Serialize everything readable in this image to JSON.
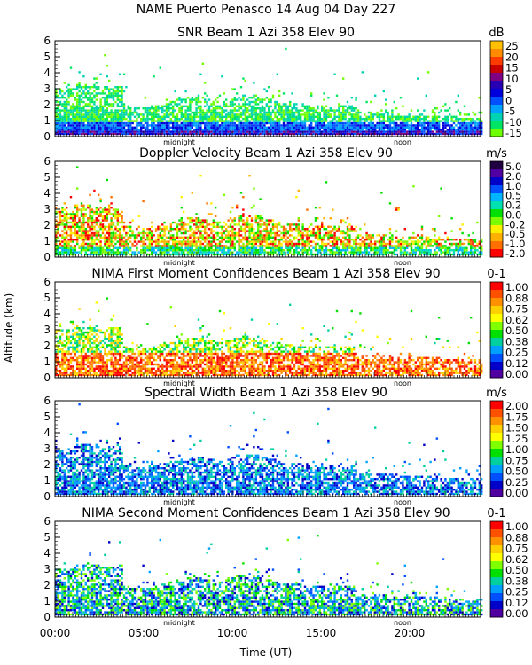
{
  "header": {
    "title": "NAME Puerto Penasco  14 Aug 04 Day 227"
  },
  "axes": {
    "ylabel": "Altitude (km)",
    "xlabel": "Time (UT)",
    "xticks": [
      "00:00",
      "05:00",
      "10:00",
      "15:00",
      "20:00"
    ],
    "yticks": [
      "0",
      "1",
      "2",
      "3",
      "4",
      "5",
      "6"
    ],
    "marker_midnight": "midnight",
    "marker_noon": "noon"
  },
  "palette": [
    "#7CFC00",
    "#00E000",
    "#00C8A0",
    "#00A0FF",
    "#0050FF",
    "#0000C8",
    "#4000A0",
    "#600080",
    "#FF0000",
    "#FF4000",
    "#FF8000",
    "#FFB000",
    "#FFE000"
  ],
  "chart_data": [
    {
      "type": "heatmap",
      "title": "SNR Beam 1 Azi 358 Elev 90",
      "unit": "dB",
      "scale_labels": [
        "25",
        "20",
        "15",
        "10",
        "5",
        "0",
        "-5",
        "-10",
        "-15"
      ],
      "scale_colors": [
        "#FFC000",
        "#FF8C00",
        "#FF3C00",
        "#C80000",
        "#7F0080",
        "#2800B4",
        "#0000DC",
        "#0050FF",
        "#00A0FF",
        "#00D2B4",
        "#00E664",
        "#6EFF00"
      ],
      "x_range_hours": [
        0,
        24
      ],
      "y_range_km": [
        0,
        6
      ],
      "profile": "snr"
    },
    {
      "type": "heatmap",
      "title": "Doppler Velocity Beam 1 Azi 358 Elev 90",
      "unit": "m/s",
      "scale_labels": [
        "5.0",
        "2.0",
        "1.0",
        "0.5",
        "0.2",
        "0.0",
        "-0.2",
        "-0.5",
        "-1.0",
        "-2.0"
      ],
      "scale_colors": [
        "#200040",
        "#5000A0",
        "#0000C8",
        "#0050FF",
        "#00B4FF",
        "#00E0B0",
        "#00E000",
        "#7CFC00",
        "#FFF000",
        "#FFB000",
        "#FF7000",
        "#FF0000"
      ],
      "x_range_hours": [
        0,
        24
      ],
      "y_range_km": [
        0,
        6
      ],
      "profile": "doppler"
    },
    {
      "type": "heatmap",
      "title": "NIMA First Moment Confidences Beam 1 Azi 358 Elev 90",
      "unit": "0-1",
      "scale_labels": [
        "1.00",
        "0.88",
        "0.75",
        "0.62",
        "0.50",
        "0.38",
        "0.25",
        "0.12",
        "0.00"
      ],
      "scale_colors": [
        "#FF0000",
        "#FF5000",
        "#FF9000",
        "#FFD000",
        "#FFFF00",
        "#80FF00",
        "#00E000",
        "#00D0A0",
        "#00A0FF",
        "#0050FF",
        "#0000C8",
        "#5000A0"
      ],
      "x_range_hours": [
        0,
        24
      ],
      "y_range_km": [
        0,
        6
      ],
      "profile": "conf1"
    },
    {
      "type": "heatmap",
      "title": "Spectral Width Beam 1 Azi 358 Elev 90",
      "unit": "m/s",
      "scale_labels": [
        "2.00",
        "1.75",
        "1.50",
        "1.25",
        "1.00",
        "0.75",
        "0.50",
        "0.25",
        "0.00"
      ],
      "scale_colors": [
        "#FF0000",
        "#FF5000",
        "#FF9000",
        "#FFD000",
        "#FFFF00",
        "#80FF00",
        "#00E000",
        "#00D0A0",
        "#00A0FF",
        "#0050FF",
        "#0000C8",
        "#5000A0"
      ],
      "x_range_hours": [
        0,
        24
      ],
      "y_range_km": [
        0,
        6
      ],
      "profile": "width"
    },
    {
      "type": "heatmap",
      "title": "NIMA Second Moment Confidences Beam 1 Azi 358 Elev 90",
      "unit": "0-1",
      "scale_labels": [
        "1.00",
        "0.88",
        "0.75",
        "0.62",
        "0.50",
        "0.38",
        "0.25",
        "0.12",
        "0.00"
      ],
      "scale_colors": [
        "#FF0000",
        "#FF5000",
        "#FF9000",
        "#FFD000",
        "#FFFF00",
        "#80FF00",
        "#00E000",
        "#00D0A0",
        "#00A0FF",
        "#0050FF",
        "#0000C8",
        "#5000A0"
      ],
      "x_range_hours": [
        0,
        24
      ],
      "y_range_km": [
        0,
        6
      ],
      "profile": "conf2"
    }
  ]
}
